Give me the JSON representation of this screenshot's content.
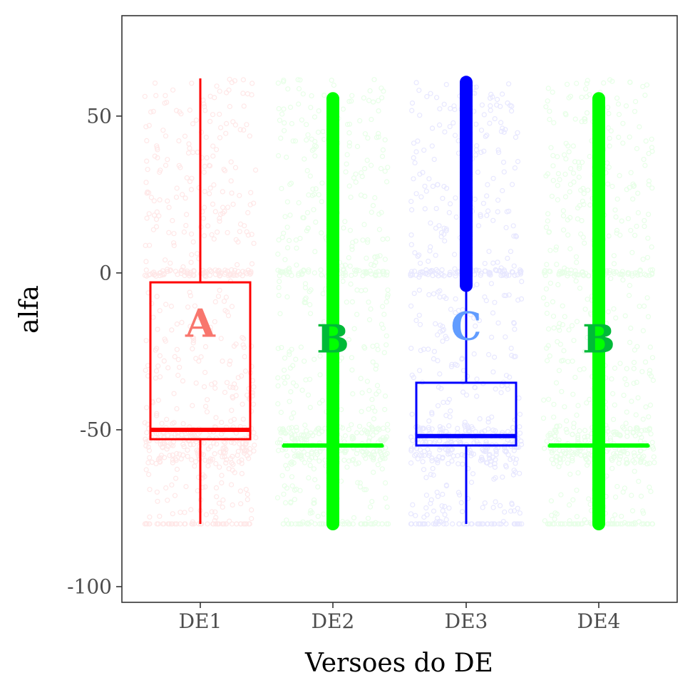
{
  "chart_data": {
    "type": "box",
    "title": "",
    "xlabel": "Versoes do DE",
    "ylabel": "alfa",
    "ylim": [
      -105,
      82
    ],
    "yticks": [
      -100,
      -50,
      0,
      50
    ],
    "grid": false,
    "legend": "none",
    "categories": [
      "DE1",
      "DE2",
      "DE3",
      "DE4"
    ],
    "series": [
      {
        "category": "DE1",
        "color": "#ff0000",
        "letter": "A",
        "letter_color": "#f8766d",
        "letter_y": -16,
        "box": {
          "q1": -53,
          "median": -50,
          "q3": -3,
          "whisker_low": -80,
          "whisker_high": 62
        },
        "outliers_range": null
      },
      {
        "category": "DE2",
        "color": "#00ff00",
        "letter": "B",
        "letter_color": "#00ba38",
        "letter_y": -21,
        "box": {
          "q1": -55,
          "median": -55,
          "q3": -55,
          "whisker_low": -55,
          "whisker_high": -55
        },
        "outliers_range": [
          -80,
          56
        ]
      },
      {
        "category": "DE3",
        "color": "#0000ff",
        "letter": "C",
        "letter_color": "#619cff",
        "letter_y": -17,
        "box": {
          "q1": -55,
          "median": -52,
          "q3": -35,
          "whisker_low": -80,
          "whisker_high": -4
        },
        "outliers_range": [
          -4,
          61
        ]
      },
      {
        "category": "DE4",
        "color": "#00ff00",
        "letter": "B",
        "letter_color": "#00ba38",
        "letter_y": -21,
        "box": {
          "q1": -55,
          "median": -55,
          "q3": -55,
          "whisker_low": -55,
          "whisker_high": -55
        },
        "outliers_range": [
          -80,
          56
        ]
      }
    ]
  }
}
